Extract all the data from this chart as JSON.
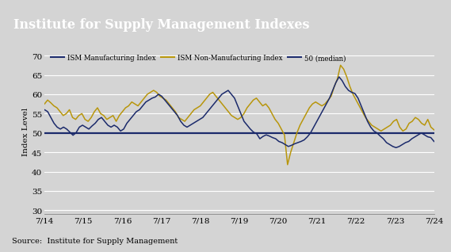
{
  "title": "Institute for Supply Management Indexes",
  "ylabel": "Index Level",
  "source": "Source:  Institute for Supply Management",
  "bg_color": "#d4d4d4",
  "title_bg": "#3a3a3a",
  "title_color": "#ffffff",
  "mfg_color": "#1b2a6b",
  "nmfg_color": "#b8960c",
  "median_color": "#1b2a6b",
  "ylim": [
    29,
    72
  ],
  "yticks": [
    30,
    35,
    40,
    45,
    50,
    55,
    60,
    65,
    70
  ],
  "median": 50,
  "x_labels": [
    "7/14",
    "7/15",
    "7/16",
    "7/17",
    "7/18",
    "7/19",
    "7/20",
    "7/21",
    "7/22",
    "7/23",
    "7/24"
  ],
  "mfg": [
    56.0,
    55.5,
    54.0,
    52.5,
    51.5,
    51.0,
    51.5,
    51.0,
    50.2,
    49.4,
    50.1,
    51.5,
    52.0,
    51.5,
    51.0,
    51.8,
    52.5,
    53.5,
    54.0,
    53.0,
    52.0,
    51.5,
    52.0,
    51.5,
    50.5,
    51.0,
    52.5,
    53.5,
    54.5,
    55.5,
    56.0,
    57.0,
    58.0,
    58.5,
    59.0,
    59.3,
    60.0,
    59.5,
    58.5,
    57.5,
    56.5,
    55.5,
    54.5,
    53.0,
    52.0,
    51.5,
    52.0,
    52.5,
    53.0,
    53.5,
    54.0,
    55.0,
    56.0,
    57.0,
    58.0,
    59.0,
    60.0,
    60.5,
    61.0,
    60.0,
    59.0,
    57.0,
    55.0,
    53.0,
    52.0,
    51.0,
    50.2,
    49.8,
    48.5,
    49.1,
    49.5,
    49.2,
    48.8,
    48.5,
    47.8,
    47.5,
    47.0,
    46.5,
    46.8,
    47.2,
    47.5,
    47.8,
    48.2,
    49.0,
    50.0,
    51.5,
    53.0,
    54.5,
    56.0,
    57.5,
    59.0,
    61.0,
    63.0,
    64.5,
    63.5,
    62.0,
    61.0,
    60.5,
    60.2,
    59.0,
    57.0,
    55.0,
    53.0,
    51.5,
    50.5,
    50.0,
    49.2,
    48.5,
    47.5,
    47.0,
    46.5,
    46.2,
    46.5,
    47.0,
    47.5,
    47.8,
    48.5,
    49.0,
    49.5,
    50.0,
    49.5,
    49.0,
    48.8,
    47.8
  ],
  "nmfg": [
    57.5,
    58.5,
    57.8,
    57.0,
    56.5,
    55.5,
    54.5,
    55.0,
    56.0,
    54.0,
    53.5,
    54.5,
    55.0,
    53.5,
    53.0,
    54.0,
    55.5,
    56.5,
    55.0,
    54.5,
    53.5,
    54.0,
    54.5,
    53.0,
    54.5,
    55.5,
    56.5,
    57.0,
    58.0,
    57.5,
    57.0,
    58.0,
    59.0,
    60.0,
    60.5,
    61.0,
    60.5,
    59.5,
    59.0,
    58.5,
    57.5,
    56.5,
    55.5,
    54.0,
    53.5,
    53.0,
    54.0,
    55.0,
    56.0,
    56.5,
    57.0,
    58.0,
    59.0,
    60.0,
    60.5,
    59.5,
    58.5,
    57.5,
    56.5,
    55.5,
    54.5,
    54.0,
    53.5,
    54.0,
    55.0,
    56.5,
    57.5,
    58.5,
    59.0,
    58.0,
    57.0,
    57.5,
    56.5,
    55.0,
    53.5,
    52.5,
    51.0,
    49.5,
    41.8,
    45.0,
    47.5,
    50.0,
    52.0,
    53.5,
    55.0,
    56.5,
    57.5,
    58.0,
    57.5,
    57.0,
    57.5,
    58.5,
    59.5,
    62.0,
    64.0,
    67.5,
    66.5,
    64.5,
    62.0,
    60.0,
    58.5,
    57.0,
    55.5,
    54.0,
    53.0,
    52.0,
    51.5,
    51.0,
    50.5,
    51.0,
    51.5,
    52.0,
    53.0,
    53.5,
    51.5,
    50.5,
    51.0,
    52.5,
    53.0,
    54.0,
    53.5,
    52.5,
    52.0,
    53.5,
    51.5,
    50.8
  ]
}
